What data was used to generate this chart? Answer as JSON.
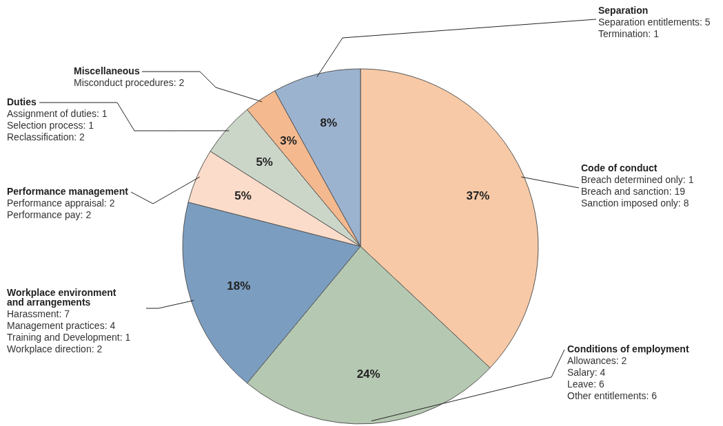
{
  "chart_data": {
    "type": "pie",
    "categories": [
      "Code of conduct",
      "Conditions of employment",
      "Workplace environment and arrangements",
      "Performance management",
      "Duties",
      "Miscellaneous",
      "Separation"
    ],
    "values": [
      37,
      24,
      18,
      5,
      5,
      3,
      8
    ],
    "colors": [
      "#f7c9a6",
      "#b5c8b1",
      "#7b9dc0",
      "#fbdcca",
      "#cbd6c8",
      "#f4b98f",
      "#9cb3cf"
    ],
    "value_labels": [
      "37%",
      "24%",
      "18%",
      "5%",
      "5%",
      "3%",
      "8%"
    ],
    "annotations": [
      "Breach determined only: 1\nBreach and sanction: 19\nSanction imposed only: 8",
      "Allowances: 2\nSalary: 4\nLeave: 6\nOther entitlements: 6",
      "Harassment: 7\nManagement practices: 4\nTraining and Development: 1\nWorkplace direction: 2",
      "Performance appraisal: 2\nPerformance pay: 2",
      "Assignment of duties: 1\nSelection process: 1\nReclassification: 2",
      "Misconduct procedures: 2",
      "Separation entitlements: 5\nTermination: 1"
    ],
    "data_labels": false
  }
}
